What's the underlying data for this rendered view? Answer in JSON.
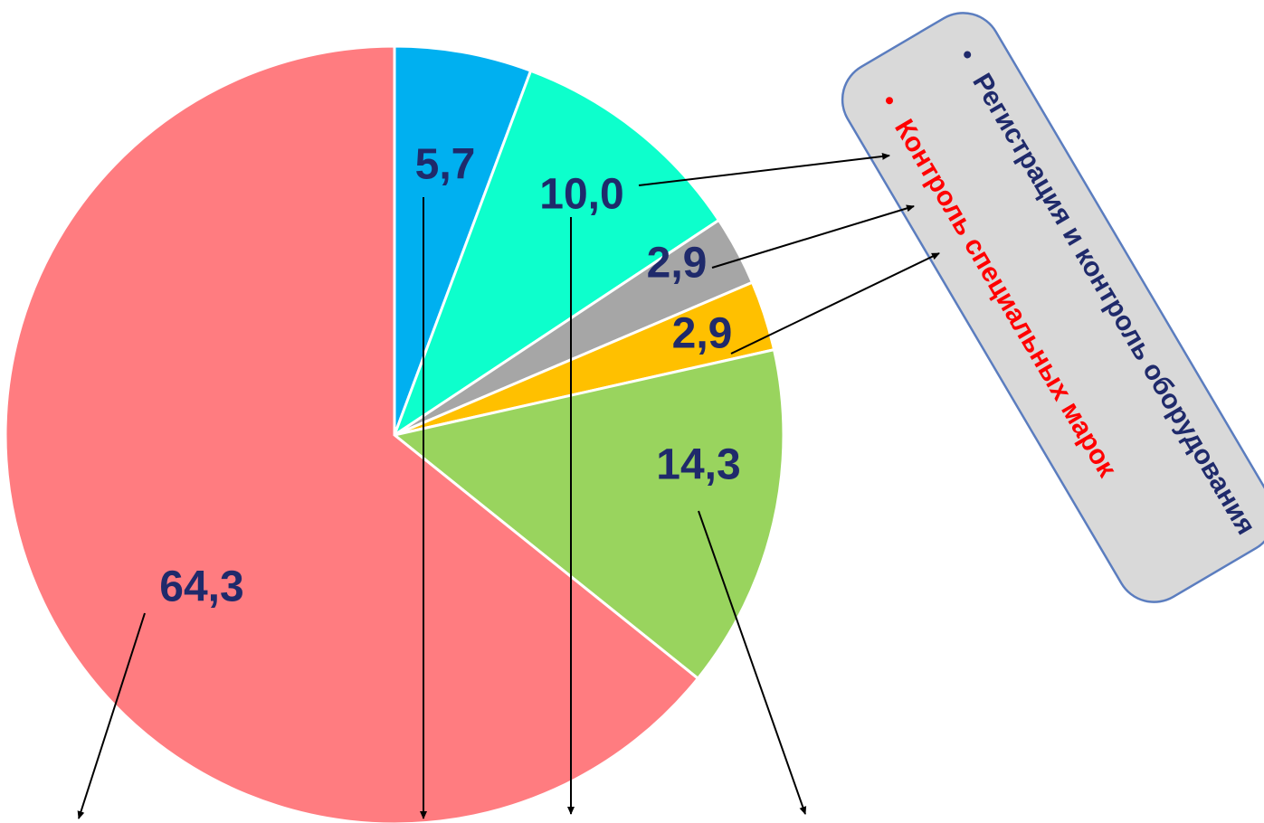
{
  "chart_data": {
    "type": "pie",
    "title": "",
    "slices": [
      {
        "value": 5.7,
        "label": "5,7",
        "color": "#00b0f0"
      },
      {
        "value": 10.0,
        "label": "10,0",
        "color": "#0dffcc"
      },
      {
        "value": 2.9,
        "label": "2,9",
        "color": "#a6a6a6"
      },
      {
        "value": 2.9,
        "label": "2,9",
        "color": "#ffc000"
      },
      {
        "value": 14.3,
        "label": "14,3",
        "color": "#99d45e"
      },
      {
        "value": 64.3,
        "label": "64,3",
        "color": "#ff7c80"
      }
    ],
    "start_angle_deg": 0,
    "direction": "clockwise",
    "legend": "none"
  },
  "callout": {
    "items": [
      {
        "text": "Регистрация и контроль оборудования",
        "color": "#1f2a6b"
      },
      {
        "text": "Контроль специальных марок",
        "color": "#ff0000"
      }
    ],
    "box_color": "#d9d9d9",
    "border_color": "#5b7dbf"
  },
  "colors": {
    "label_text": "#1f2a6b",
    "arrows": "#000000",
    "slice_border": "#ffffff"
  }
}
